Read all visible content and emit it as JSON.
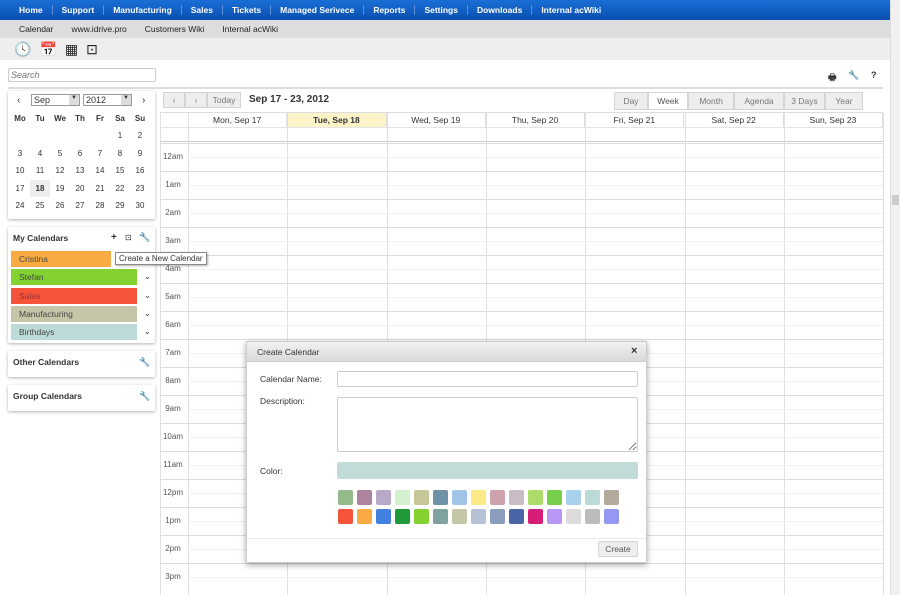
{
  "nav": [
    "Home",
    "Support",
    "Manufacturing",
    "Sales",
    "Tickets",
    "Managed Serivece",
    "Reports",
    "Settings",
    "Downloads",
    "Internal acWiki"
  ],
  "subnav": [
    "Calendar",
    "www.idrive.pro",
    "Customers Wiki",
    "Internal acWiki"
  ],
  "toolbar_icons": [
    "clock-icon",
    "calendar-icon",
    "calculator-icon",
    "terminal-icon"
  ],
  "search": {
    "placeholder": "Search"
  },
  "top_tools": [
    "print-icon",
    "wrench-icon",
    "help-icon"
  ],
  "top_tool_glyphs": [
    "🖶",
    "🔧",
    "?"
  ],
  "mini_calendar": {
    "month": "Sep",
    "year": "2012",
    "prev": "‹",
    "next": "›",
    "weekdays": [
      "Mo",
      "Tu",
      "We",
      "Th",
      "Fr",
      "Sa",
      "Su"
    ],
    "weeks": [
      [
        "",
        "",
        "",
        "",
        "",
        "1",
        "2"
      ],
      [
        "3",
        "4",
        "5",
        "6",
        "7",
        "8",
        "9"
      ],
      [
        "10",
        "11",
        "12",
        "13",
        "14",
        "15",
        "16"
      ],
      [
        "17",
        "18",
        "19",
        "20",
        "21",
        "22",
        "23"
      ],
      [
        "24",
        "25",
        "26",
        "27",
        "28",
        "29",
        "30"
      ]
    ],
    "today": "18"
  },
  "my_calendars": {
    "title": "My Calendars",
    "tooltip": "Create a New Calendar",
    "items": [
      {
        "name": "Cristina",
        "color": "#f9ab43"
      },
      {
        "name": "Stefan",
        "color": "#84d232"
      },
      {
        "name": "Sales",
        "color": "#f5543a"
      },
      {
        "name": "Manufacturing",
        "color": "#c5c5a7"
      },
      {
        "name": "Birthdays",
        "color": "#bcdbd8"
      }
    ]
  },
  "other_calendars": {
    "title": "Other Calendars"
  },
  "group_calendars": {
    "title": "Group Calendars"
  },
  "week_nav": {
    "prev": "‹",
    "next": "›",
    "today": "Today",
    "range": "Sep 17 - 23, 2012"
  },
  "views": [
    "Day",
    "Week",
    "Month",
    "Agenda",
    "3 Days",
    "Year"
  ],
  "active_view": "Week",
  "days": [
    "Mon, Sep 17",
    "Tue, Sep 18",
    "Wed, Sep 19",
    "Thu, Sep 20",
    "Fri, Sep 21",
    "Sat, Sep 22",
    "Sun, Sep 23"
  ],
  "today_index": 1,
  "hours": [
    "12am",
    "1am",
    "2am",
    "3am",
    "4am",
    "5am",
    "6am",
    "7am",
    "8am",
    "9am",
    "10am",
    "11am",
    "12pm",
    "1pm",
    "2pm",
    "3pm"
  ],
  "dialog": {
    "title": "Create Calendar",
    "close": "×",
    "name_label": "Calendar Name:",
    "name_value": "",
    "desc_label": "Description:",
    "desc_value": "",
    "color_label": "Color:",
    "selected_color": "#c0dbd8",
    "create": "Create",
    "swatches": [
      [
        "#94b98a",
        "#ac849f",
        "#b9a9c9",
        "#d5f0cf",
        "#c7c89a",
        "#6f93a6",
        "#9fc4e8",
        "#fce988",
        "#cda2ac",
        "#c9bcc4",
        "#addc6a",
        "#77cf4a",
        "#a9d1ee",
        "#bcdbd8",
        "#b3a99c"
      ],
      [
        "#f5543a",
        "#f9ab43",
        "#4381e0",
        "#1f9a3a",
        "#84d232",
        "#7fa2a0",
        "#c5c5a7",
        "#b6c1d5",
        "#8b9cbd",
        "#4a64a8",
        "#d61d78",
        "#b897f5",
        "#dcdcdc",
        "#bcbcbc",
        "#9598f3"
      ]
    ]
  }
}
